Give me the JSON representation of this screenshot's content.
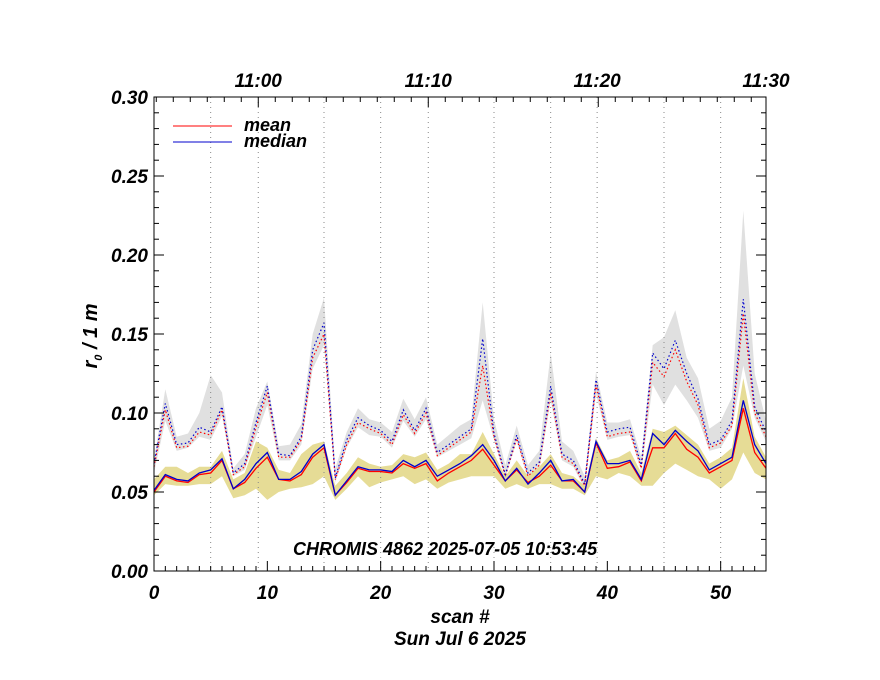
{
  "chart_data": {
    "type": "line",
    "title": "",
    "xlabel": "scan #",
    "date_label": "Sun Jul  6 2025",
    "ylabel_main": "r",
    "ylabel_sub": "0",
    "ylabel_rest": " / 1 m",
    "annotation": "CHROMIS 4862 2025-07-05 10:53:45",
    "xlim": [
      0,
      54
    ],
    "ylim": [
      0,
      0.3
    ],
    "x_ticks": [
      "0",
      "10",
      "20",
      "30",
      "40",
      "50"
    ],
    "y_ticks": [
      "0.00",
      "0.05",
      "0.10",
      "0.15",
      "0.20",
      "0.25",
      "0.30"
    ],
    "top_axis_ticks": [
      {
        "label": "11:00",
        "scan": 9.2
      },
      {
        "label": "11:10",
        "scan": 24.2
      },
      {
        "label": "11:20",
        "scan": 39.1
      },
      {
        "label": "11:30",
        "scan": 54.0
      }
    ],
    "time_gridlines": [
      5,
      9.2,
      15,
      20,
      24.2,
      30,
      35,
      39.1,
      45,
      50
    ],
    "legend": [
      {
        "name": "mean",
        "color": "#ff0000"
      },
      {
        "name": "median",
        "color": "#0000cc"
      }
    ],
    "legend_position": "top-left",
    "colors": {
      "mean": "#ff0000",
      "median": "#0000cc",
      "band_low": "#e6dc96",
      "band_high": "#e0e0e0"
    },
    "series": [
      {
        "name": "mean",
        "values": [
          0.05,
          0.06,
          0.057,
          0.056,
          0.061,
          0.062,
          0.07,
          0.052,
          0.056,
          0.065,
          0.072,
          0.058,
          0.057,
          0.061,
          0.072,
          0.078,
          0.048,
          0.056,
          0.065,
          0.063,
          0.063,
          0.062,
          0.068,
          0.065,
          0.068,
          0.057,
          0.062,
          0.066,
          0.07,
          0.077,
          0.067,
          0.057,
          0.064,
          0.056,
          0.06,
          0.067,
          0.057,
          0.057,
          0.05,
          0.081,
          0.065,
          0.066,
          0.069,
          0.057,
          0.078,
          0.078,
          0.087,
          0.077,
          0.072,
          0.062,
          0.066,
          0.07,
          0.103,
          0.075,
          0.065
        ]
      },
      {
        "name": "median",
        "values": [
          0.051,
          0.061,
          0.058,
          0.057,
          0.062,
          0.064,
          0.071,
          0.052,
          0.058,
          0.068,
          0.075,
          0.058,
          0.058,
          0.063,
          0.074,
          0.08,
          0.048,
          0.057,
          0.066,
          0.064,
          0.064,
          0.063,
          0.07,
          0.066,
          0.07,
          0.06,
          0.064,
          0.068,
          0.073,
          0.08,
          0.07,
          0.057,
          0.065,
          0.055,
          0.062,
          0.07,
          0.057,
          0.058,
          0.05,
          0.082,
          0.068,
          0.068,
          0.07,
          0.058,
          0.087,
          0.08,
          0.089,
          0.082,
          0.076,
          0.064,
          0.068,
          0.072,
          0.108,
          0.08,
          0.068
        ]
      },
      {
        "name": "mean_upper",
        "values": [
          0.066,
          0.102,
          0.078,
          0.079,
          0.088,
          0.086,
          0.102,
          0.061,
          0.066,
          0.091,
          0.113,
          0.072,
          0.072,
          0.083,
          0.135,
          0.15,
          0.058,
          0.08,
          0.094,
          0.09,
          0.087,
          0.08,
          0.099,
          0.087,
          0.1,
          0.073,
          0.078,
          0.083,
          0.088,
          0.13,
          0.085,
          0.06,
          0.084,
          0.06,
          0.067,
          0.113,
          0.072,
          0.068,
          0.054,
          0.118,
          0.085,
          0.087,
          0.088,
          0.065,
          0.132,
          0.123,
          0.14,
          0.12,
          0.105,
          0.078,
          0.081,
          0.092,
          0.163,
          0.1,
          0.085
        ]
      },
      {
        "name": "median_upper",
        "values": [
          0.068,
          0.106,
          0.08,
          0.081,
          0.091,
          0.088,
          0.104,
          0.062,
          0.068,
          0.094,
          0.117,
          0.074,
          0.073,
          0.085,
          0.14,
          0.157,
          0.059,
          0.083,
          0.097,
          0.092,
          0.089,
          0.082,
          0.102,
          0.089,
          0.103,
          0.075,
          0.08,
          0.085,
          0.09,
          0.147,
          0.087,
          0.061,
          0.086,
          0.062,
          0.069,
          0.117,
          0.074,
          0.07,
          0.055,
          0.121,
          0.088,
          0.09,
          0.091,
          0.067,
          0.138,
          0.128,
          0.146,
          0.125,
          0.109,
          0.08,
          0.083,
          0.095,
          0.172,
          0.104,
          0.088
        ]
      },
      {
        "name": "band_low_min",
        "values": [
          0.048,
          0.055,
          0.054,
          0.054,
          0.055,
          0.055,
          0.06,
          0.046,
          0.048,
          0.052,
          0.045,
          0.05,
          0.052,
          0.053,
          0.055,
          0.06,
          0.045,
          0.052,
          0.06,
          0.053,
          0.056,
          0.058,
          0.06,
          0.055,
          0.058,
          0.052,
          0.056,
          0.058,
          0.06,
          0.06,
          0.06,
          0.052,
          0.055,
          0.052,
          0.055,
          0.055,
          0.052,
          0.052,
          0.048,
          0.06,
          0.058,
          0.062,
          0.06,
          0.054,
          0.054,
          0.062,
          0.068,
          0.064,
          0.06,
          0.058,
          0.052,
          0.058,
          0.075,
          0.062,
          0.058
        ]
      },
      {
        "name": "band_low_max",
        "values": [
          0.058,
          0.066,
          0.066,
          0.062,
          0.066,
          0.066,
          0.076,
          0.058,
          0.062,
          0.082,
          0.078,
          0.064,
          0.062,
          0.074,
          0.08,
          0.082,
          0.054,
          0.062,
          0.072,
          0.068,
          0.066,
          0.067,
          0.074,
          0.072,
          0.075,
          0.064,
          0.068,
          0.074,
          0.074,
          0.088,
          0.074,
          0.06,
          0.07,
          0.06,
          0.066,
          0.074,
          0.062,
          0.06,
          0.054,
          0.084,
          0.07,
          0.072,
          0.076,
          0.062,
          0.09,
          0.088,
          0.092,
          0.086,
          0.08,
          0.068,
          0.072,
          0.078,
          0.122,
          0.085,
          0.072
        ]
      },
      {
        "name": "band_high_min",
        "values": [
          0.062,
          0.095,
          0.076,
          0.078,
          0.085,
          0.083,
          0.098,
          0.06,
          0.064,
          0.085,
          0.105,
          0.07,
          0.07,
          0.08,
          0.128,
          0.143,
          0.056,
          0.078,
          0.091,
          0.086,
          0.085,
          0.078,
          0.095,
          0.085,
          0.096,
          0.072,
          0.076,
          0.08,
          0.084,
          0.108,
          0.083,
          0.059,
          0.082,
          0.058,
          0.064,
          0.108,
          0.07,
          0.066,
          0.052,
          0.112,
          0.083,
          0.085,
          0.086,
          0.063,
          0.118,
          0.105,
          0.118,
          0.108,
          0.097,
          0.076,
          0.078,
          0.09,
          0.13,
          0.097,
          0.082
        ]
      },
      {
        "name": "band_high_max",
        "values": [
          0.07,
          0.115,
          0.085,
          0.087,
          0.1,
          0.124,
          0.113,
          0.065,
          0.074,
          0.103,
          0.12,
          0.079,
          0.08,
          0.093,
          0.15,
          0.173,
          0.065,
          0.088,
          0.103,
          0.096,
          0.094,
          0.088,
          0.109,
          0.096,
          0.11,
          0.08,
          0.086,
          0.092,
          0.096,
          0.17,
          0.096,
          0.067,
          0.092,
          0.067,
          0.076,
          0.138,
          0.082,
          0.076,
          0.06,
          0.126,
          0.094,
          0.094,
          0.096,
          0.072,
          0.143,
          0.148,
          0.165,
          0.135,
          0.122,
          0.09,
          0.095,
          0.11,
          0.228,
          0.125,
          0.095
        ]
      }
    ]
  }
}
